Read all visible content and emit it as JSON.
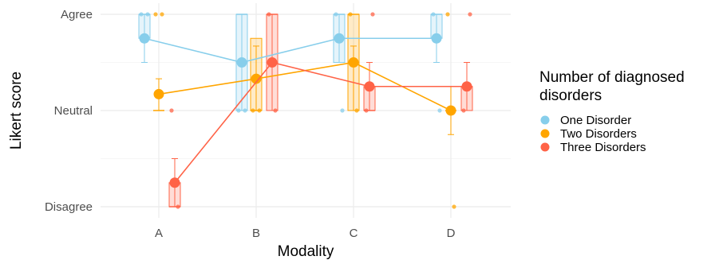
{
  "chart_data": {
    "type": "line",
    "xlabel": "Modality",
    "ylabel": "Likert score",
    "categories": [
      "A",
      "B",
      "C",
      "D"
    ],
    "y_levels": [
      {
        "value": -1,
        "label": "Disagree"
      },
      {
        "value": 0,
        "label": "Neutral"
      },
      {
        "value": 1,
        "label": "Agree"
      }
    ],
    "ylim": [
      -1.05,
      1.05
    ],
    "grid": true,
    "legend": {
      "title": [
        "Number of diagnosed",
        "disorders"
      ],
      "placement": "right"
    },
    "series": [
      {
        "name": "One Disorder",
        "color": "#87CEEB",
        "means": [
          0.75,
          0.5,
          0.75,
          0.75
        ],
        "error_bars": [
          [
            0.5,
            1.0
          ],
          [
            0.0,
            1.0
          ],
          [
            0.5,
            1.0
          ],
          [
            0.5,
            1.0
          ]
        ],
        "boxes": [
          [
            0.75,
            1.0,
            1.0
          ],
          [
            0.0,
            1.0,
            1.0
          ],
          [
            0.5,
            1.0,
            1.0
          ],
          [
            0.75,
            1.0,
            1.0
          ]
        ],
        "points": [
          [
            0,
            1
          ],
          [
            1,
            1
          ],
          [
            0,
            0
          ],
          [
            1,
            0
          ],
          [
            1,
            1
          ],
          [
            0,
            0
          ],
          [
            1,
            1
          ],
          [
            0,
            0
          ]
        ]
      },
      {
        "name": "Two Disorders",
        "color": "#FFA500",
        "means": [
          0.17,
          0.33,
          0.5,
          0.0
        ],
        "error_bars": [
          [
            0.0,
            0.33
          ],
          [
            0.0,
            0.67
          ],
          [
            0.0,
            0.67
          ],
          [
            -0.25,
            0.25
          ]
        ],
        "boxes": [
          [
            0.0,
            0.0,
            0.0
          ],
          [
            0.0,
            0.0,
            0.75
          ],
          [
            0.0,
            1.0,
            1.0
          ],
          [
            0.0,
            0.0,
            0.0
          ]
        ],
        "points": [
          [
            0,
            1
          ],
          [
            1,
            1
          ],
          [
            0,
            0
          ],
          [
            1,
            0
          ],
          [
            1,
            1
          ],
          [
            0,
            0
          ],
          [
            1,
            1
          ],
          [
            0,
            -1
          ]
        ]
      },
      {
        "name": "Three Disorders",
        "color": "#FF6347",
        "means": [
          -0.75,
          0.5,
          0.25,
          0.25
        ],
        "error_bars": [
          [
            -1.0,
            -0.5
          ],
          [
            0.0,
            1.0
          ],
          [
            0.0,
            0.5
          ],
          [
            0.0,
            0.5
          ]
        ],
        "boxes": [
          [
            -1.0,
            -1.0,
            -0.75
          ],
          [
            0.0,
            1.0,
            1.0
          ],
          [
            0.0,
            0.0,
            0.25
          ],
          [
            0.0,
            0.25,
            0.25
          ]
        ],
        "points": [
          [
            0,
            0
          ],
          [
            0,
            -1
          ],
          [
            1,
            1
          ],
          [
            1,
            0
          ],
          [
            0,
            0
          ],
          [
            1,
            1
          ],
          [
            0,
            0
          ],
          [
            1,
            1
          ]
        ]
      }
    ]
  }
}
